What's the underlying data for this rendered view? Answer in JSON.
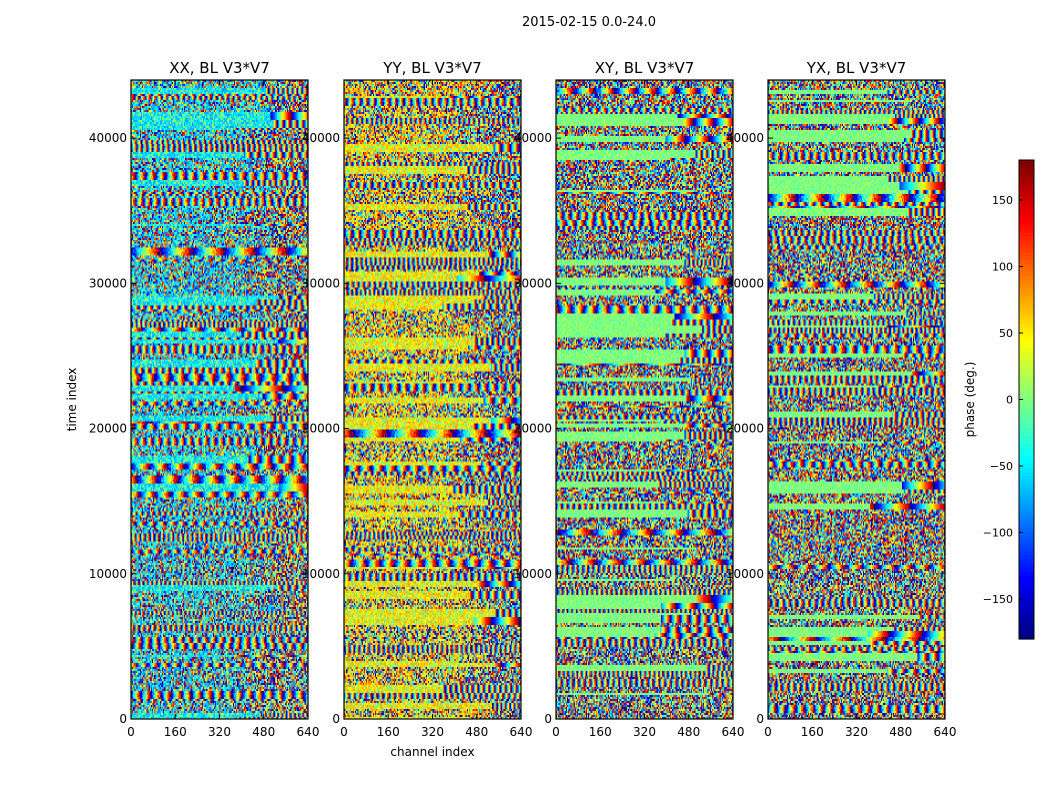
{
  "figure_title": "2015-02-15 0.0-24.0",
  "chart_data": [
    {
      "type": "heatmap",
      "title": "XX, BL V3*V7",
      "xlabel": "",
      "ylabel": "time index",
      "xlim": [
        0,
        640
      ],
      "ylim": [
        0,
        44000
      ],
      "xticks": [
        0,
        160,
        320,
        480,
        640
      ],
      "yticks": [
        0,
        10000,
        20000,
        30000,
        40000
      ],
      "value_label": "phase (deg.)",
      "vlim": [
        -180,
        180
      ],
      "dominant_value": -60
    },
    {
      "type": "heatmap",
      "title": "YY, BL V3*V7",
      "xlabel": "channel index",
      "ylabel": "",
      "xlim": [
        0,
        640
      ],
      "ylim": [
        0,
        44000
      ],
      "xticks": [
        0,
        160,
        320,
        480,
        640
      ],
      "yticks": [
        0,
        10000,
        20000,
        30000,
        40000
      ],
      "value_label": "phase (deg.)",
      "vlim": [
        -180,
        180
      ],
      "dominant_value": 60
    },
    {
      "type": "heatmap",
      "title": "XY, BL V3*V7",
      "xlabel": "",
      "ylabel": "",
      "xlim": [
        0,
        640
      ],
      "ylim": [
        0,
        44000
      ],
      "xticks": [
        0,
        160,
        320,
        480,
        640
      ],
      "yticks": [
        0,
        10000,
        20000,
        30000,
        40000
      ],
      "value_label": "phase (deg.)",
      "vlim": [
        -180,
        180
      ],
      "dominant_value": null
    },
    {
      "type": "heatmap",
      "title": "YX, BL V3*V7",
      "xlabel": "",
      "ylabel": "",
      "xlim": [
        0,
        640
      ],
      "ylim": [
        0,
        44000
      ],
      "xticks": [
        0,
        160,
        320,
        480,
        640
      ],
      "yticks": [
        0,
        10000,
        20000,
        30000,
        40000
      ],
      "value_label": "phase (deg.)",
      "vlim": [
        -180,
        180
      ],
      "dominant_value": null
    }
  ],
  "colorbar": {
    "label": "phase (deg.)",
    "range": [
      -180,
      180
    ],
    "ticks": [
      -150,
      -100,
      -50,
      0,
      50,
      100,
      150
    ],
    "tick_labels": [
      "−150",
      "−100",
      "−50",
      "0",
      "50",
      "100",
      "150"
    ],
    "colormap": "jet"
  }
}
